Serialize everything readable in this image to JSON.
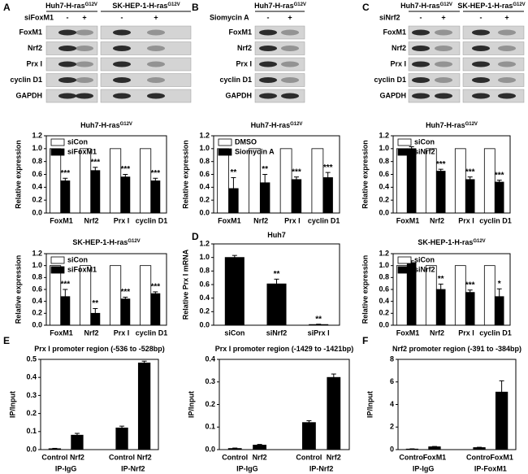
{
  "panels": [
    "A",
    "B",
    "C",
    "D",
    "E",
    "F"
  ],
  "blots": [
    {
      "treatment": "siFoxM1",
      "groups": [
        {
          "name": "Huh7-H-ras",
          "sup": "G12V"
        },
        {
          "name": "SK-HEP-1-H-ras",
          "sup": "G12V"
        }
      ],
      "signs": [
        "-",
        "+",
        "-",
        "+"
      ],
      "rows": [
        "FoxM1",
        "Nrf2",
        "Prx I",
        "cyclin D1",
        "GAPDH"
      ]
    },
    {
      "treatment": "Siomycin A",
      "groups": [
        {
          "name": "Huh7-H-ras",
          "sup": "G12V"
        }
      ],
      "signs": [
        "-",
        "+"
      ],
      "rows": [
        "FoxM1",
        "Nrf2",
        "Prx I",
        "cyclin D1",
        "GAPDH"
      ]
    },
    {
      "treatment": "siNrf2",
      "groups": [
        {
          "name": "Huh7-H-ras",
          "sup": "G12V"
        },
        {
          "name": "SK-HEP-1-H-ras",
          "sup": "G12V"
        }
      ],
      "signs": [
        "-",
        "+",
        "-",
        "+"
      ],
      "rows": [
        "FoxM1",
        "Nrf2",
        "Prx I",
        "cyclin D1",
        "GAPDH"
      ]
    }
  ],
  "chart_data": [
    {
      "type": "bar",
      "title": "Huh7-H-ras",
      "title_sup": "G12V",
      "ylabel": "Relative expression",
      "categories": [
        "FoxM1",
        "Nrf2",
        "Prx I",
        "cyclin D1"
      ],
      "series": [
        {
          "name": "siCon",
          "color": "#ffffff",
          "values": [
            1,
            1,
            1,
            1
          ]
        },
        {
          "name": "siFoxM1",
          "color": "#000000",
          "values": [
            0.5,
            0.66,
            0.56,
            0.5
          ],
          "errors": [
            0.04,
            0.05,
            0.04,
            0.04
          ]
        }
      ],
      "significance": [
        "***",
        "***",
        "***",
        "***"
      ],
      "ylim": [
        0,
        1.2
      ],
      "yticks": [
        {
          "value": 0,
          "label": "0.0"
        },
        0.2,
        0.4,
        0.6,
        0.8,
        {
          "value": 1,
          "label": "1.0"
        },
        1.2
      ],
      "legend": "upper left"
    },
    {
      "type": "bar",
      "title": "Huh7-H-ras",
      "title_sup": "G12V",
      "ylabel": "Relative expression",
      "categories": [
        "FoxM1",
        "Nrf2",
        "Prx I",
        "cyclin D1"
      ],
      "series": [
        {
          "name": "DMSO",
          "color": "#ffffff",
          "values": [
            1,
            1,
            1,
            1
          ]
        },
        {
          "name": "Siomycin A",
          "color": "#000000",
          "values": [
            0.38,
            0.47,
            0.52,
            0.55
          ],
          "errors": [
            0.17,
            0.13,
            0.04,
            0.08
          ]
        }
      ],
      "significance": [
        "**",
        "**",
        "***",
        "***"
      ],
      "ylim": [
        0,
        1.2
      ],
      "yticks": [
        {
          "value": 0,
          "label": "0.0"
        },
        0.2,
        0.4,
        0.6,
        0.8,
        {
          "value": 1,
          "label": "1.0"
        },
        1.2
      ],
      "legend": "upper left"
    },
    {
      "type": "bar",
      "title": "Huh7-H-ras",
      "title_sup": "G12V",
      "ylabel": "Relative expression",
      "categories": [
        "FoxM1",
        "Nrf2",
        "Prx I",
        "cyclin D1"
      ],
      "series": [
        {
          "name": "siCon",
          "color": "#ffffff",
          "values": [
            1,
            1,
            1,
            1
          ]
        },
        {
          "name": "siNrf2",
          "color": "#000000",
          "values": [
            1,
            0.65,
            0.52,
            0.48
          ],
          "errors": [
            0.03,
            0.03,
            0.04,
            0.03
          ]
        }
      ],
      "significance": [
        null,
        "***",
        "***",
        "***"
      ],
      "ylim": [
        0,
        1.2
      ],
      "yticks": [
        {
          "value": 0,
          "label": "0.0"
        },
        0.2,
        0.4,
        0.6,
        0.8,
        {
          "value": 1,
          "label": "1.0"
        },
        1.2
      ],
      "legend": "upper left"
    },
    {
      "type": "bar",
      "title": "SK-HEP-1-H-ras",
      "title_sup": "G12V",
      "ylabel": "Relative expression",
      "categories": [
        "FoxM1",
        "Nrf2",
        "Prx I",
        "cyclin D1"
      ],
      "series": [
        {
          "name": "siCon",
          "color": "#ffffff",
          "values": [
            1,
            1,
            1,
            1
          ]
        },
        {
          "name": "siFoxM1",
          "color": "#000000",
          "values": [
            0.48,
            0.2,
            0.44,
            0.53
          ],
          "errors": [
            0.12,
            0.08,
            0.03,
            0.03
          ]
        }
      ],
      "significance": [
        "***",
        "**",
        "***",
        "***"
      ],
      "ylim": [
        0,
        1.2
      ],
      "yticks": [
        {
          "value": 0,
          "label": "0.0"
        },
        0.2,
        0.4,
        0.6,
        0.8,
        {
          "value": 1,
          "label": "1.0"
        },
        1.2
      ],
      "legend": "upper left"
    },
    {
      "type": "bar",
      "title": "Huh7",
      "ylabel": "Relative Prx I mRNA",
      "categories": [
        "siCon",
        "siNrf2",
        "siPrx I"
      ],
      "series": [
        {
          "color": "#000000",
          "values": [
            1,
            0.61,
            0.01
          ],
          "errors": [
            0.03,
            0.07,
            0.005
          ]
        }
      ],
      "significance": [
        null,
        "**",
        "**"
      ],
      "ylim": [
        0,
        1.2
      ],
      "yticks": [
        {
          "value": 0,
          "label": "0.0"
        },
        0.2,
        0.4,
        0.6,
        0.8,
        {
          "value": 1,
          "label": "1.0"
        },
        1.2
      ]
    },
    {
      "type": "bar",
      "title": "SK-HEP-1-H-ras",
      "title_sup": "G12V",
      "ylabel": "Relative expression",
      "categories": [
        "FoxM1",
        "Nrf2",
        "Prx I",
        "cyclin D1"
      ],
      "series": [
        {
          "name": "siCon",
          "color": "#ffffff",
          "values": [
            1,
            1,
            1,
            1
          ]
        },
        {
          "name": "siNrf2",
          "color": "#000000",
          "values": [
            1.05,
            0.6,
            0.55,
            0.48
          ],
          "errors": [
            0.03,
            0.09,
            0.04,
            0.13
          ]
        }
      ],
      "significance": [
        null,
        "**",
        "***",
        "*"
      ],
      "ylim": [
        0,
        1.2
      ],
      "yticks": [
        {
          "value": 0,
          "label": "0.0"
        },
        0.2,
        0.4,
        0.6,
        0.8,
        {
          "value": 1,
          "label": "1.0"
        },
        1.2
      ],
      "legend": "upper left"
    },
    {
      "type": "bar",
      "title": "Prx I promoter region (-536 to -528bp)",
      "ylabel": "IP/Input",
      "categories": [
        "Control",
        "Nrf2",
        "Control",
        "Nrf2"
      ],
      "groups": [
        "IP-IgG",
        "IP-Nrf2"
      ],
      "series": [
        {
          "color": "#000000",
          "values": [
            0.005,
            0.08,
            0.12,
            0.48
          ],
          "errors": [
            0.002,
            0.01,
            0.01,
            0.01
          ]
        }
      ],
      "ylim": [
        0,
        0.5
      ],
      "yticks": [
        {
          "value": 0,
          "label": "0.0"
        },
        0.1,
        0.2,
        0.3,
        0.4,
        0.5
      ]
    },
    {
      "type": "bar",
      "title": "Prx I promoter region (-1429 to -1421bp)",
      "ylabel": "IP/Input",
      "categories": [
        "Control",
        "Nrf2",
        "Control",
        "Nrf2"
      ],
      "groups": [
        "IP-IgG",
        "IP-Nrf2"
      ],
      "series": [
        {
          "color": "#000000",
          "values": [
            0.005,
            0.02,
            0.12,
            0.32
          ],
          "errors": [
            0.002,
            0.003,
            0.008,
            0.015
          ]
        }
      ],
      "ylim": [
        0,
        0.4
      ],
      "yticks": [
        {
          "value": 0,
          "label": "0.0"
        },
        0.1,
        0.2,
        0.3,
        0.4
      ]
    },
    {
      "type": "bar",
      "title": "Nrf2 promoter region (-391 to -384bp)",
      "ylabel": "IP/Input",
      "categories": [
        "Control",
        "FoxM1",
        "Control",
        "FoxM1"
      ],
      "groups": [
        "IP-IgG",
        "IP-FoxM1"
      ],
      "series": [
        {
          "color": "#000000",
          "values": [
            0.05,
            0.25,
            0.18,
            5.1
          ],
          "errors": [
            0.02,
            0.03,
            0.03,
            1
          ]
        }
      ],
      "ylim": [
        0,
        8
      ],
      "yticks": [
        0,
        2,
        4,
        6,
        8
      ]
    }
  ]
}
